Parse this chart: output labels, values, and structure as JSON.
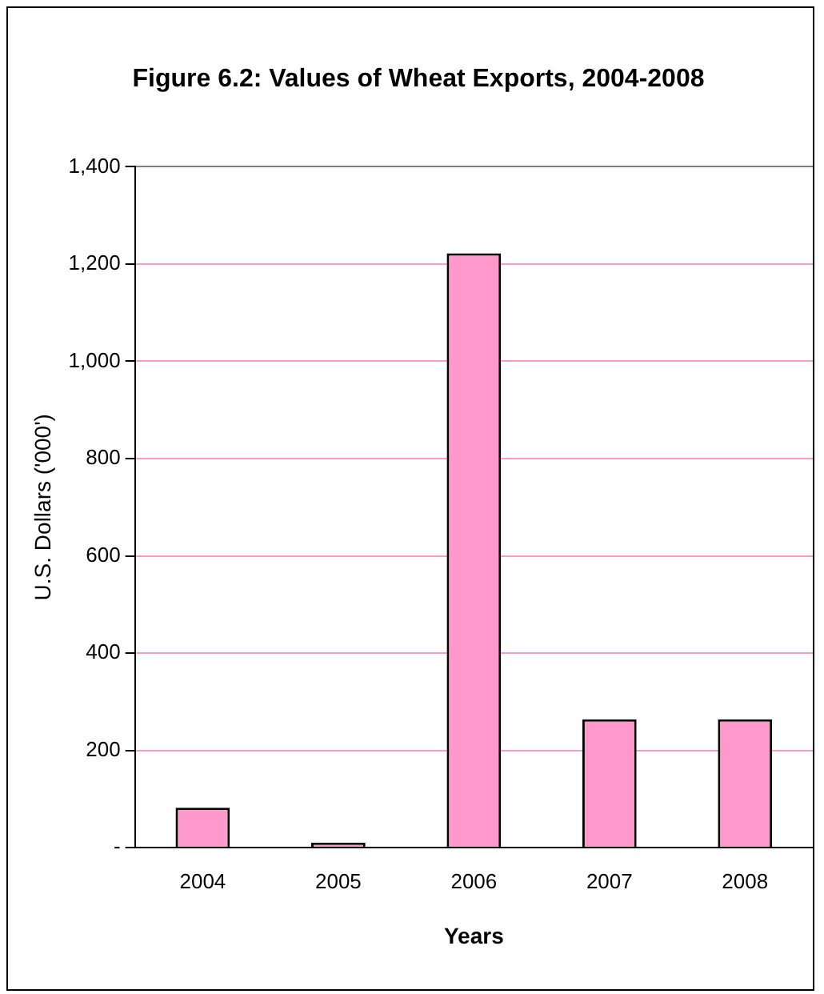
{
  "chart_data": {
    "type": "bar",
    "title": "Figure 6.2: Values of Wheat Exports, 2004-2008",
    "xlabel": "Years",
    "ylabel": "U.S. Dollars ('000')",
    "categories": [
      "2004",
      "2005",
      "2006",
      "2007",
      "2008"
    ],
    "values": [
      82,
      10,
      1222,
      264,
      264
    ],
    "color": "#ff99cc",
    "ylim": [
      0,
      1400
    ],
    "yticks": [
      {
        "value": 0,
        "label": "-"
      },
      {
        "value": 200,
        "label": "200"
      },
      {
        "value": 400,
        "label": "400"
      },
      {
        "value": 600,
        "label": "600"
      },
      {
        "value": 800,
        "label": "800"
      },
      {
        "value": 1000,
        "label": "1,000"
      },
      {
        "value": 1200,
        "label": "1,200"
      },
      {
        "value": 1400,
        "label": "1,400"
      }
    ],
    "grid": "y",
    "legend": false
  }
}
